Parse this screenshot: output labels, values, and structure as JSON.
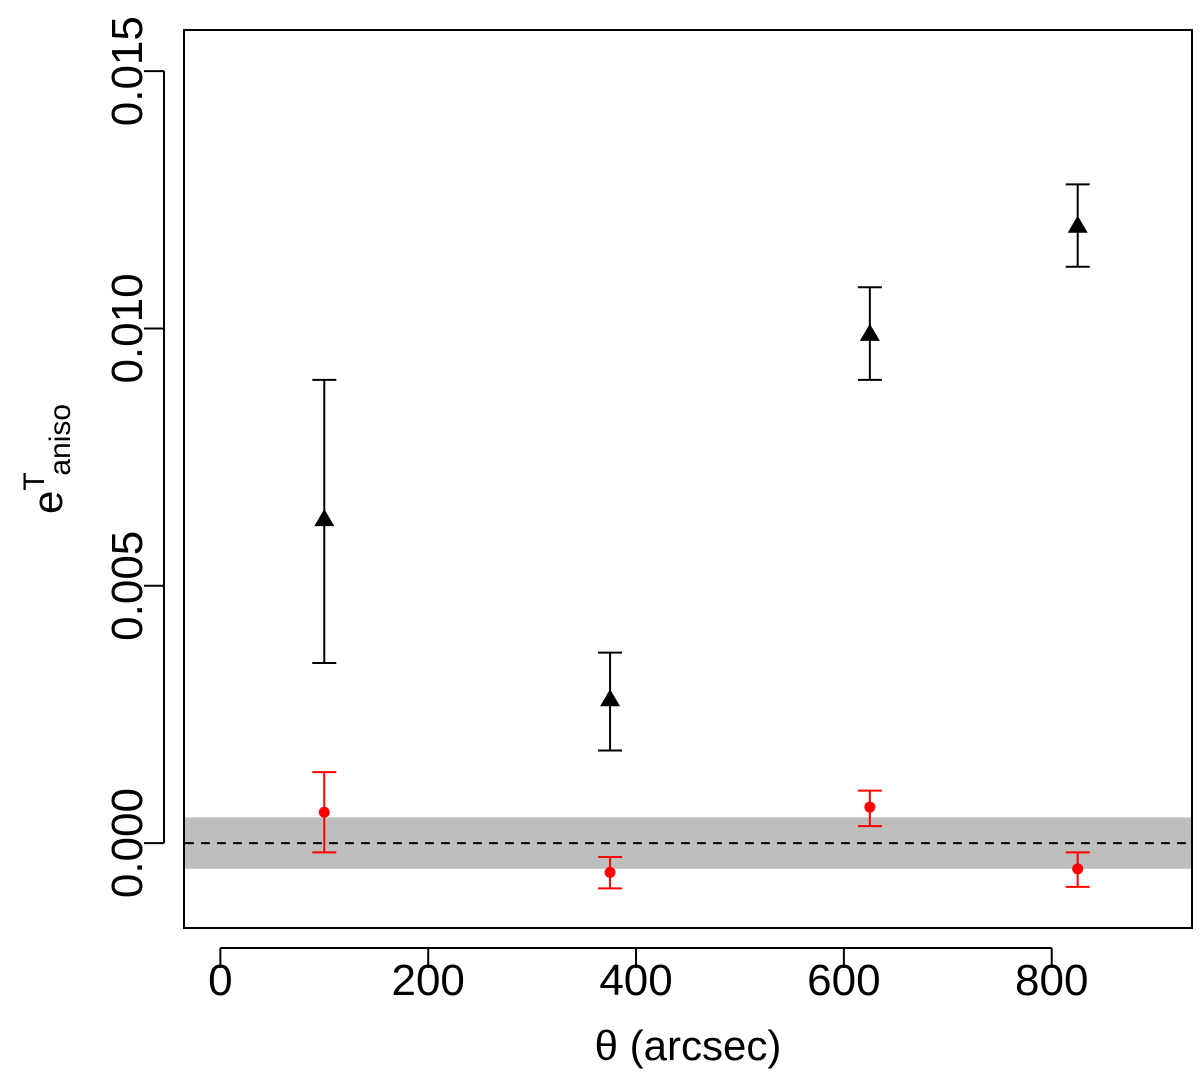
{
  "chart_data": {
    "type": "scatter",
    "title": "",
    "xlabel": "θ  (arcsec)",
    "ylabel": {
      "base": "e",
      "superscript": "T",
      "subscript": "aniso"
    },
    "xlim": [
      -35,
      935
    ],
    "ylim": [
      -0.00165,
      0.0158
    ],
    "x_ticks": [
      0,
      200,
      400,
      600,
      800
    ],
    "x_tick_labels": [
      "0",
      "200",
      "400",
      "600",
      "800"
    ],
    "y_ticks": [
      0.0,
      0.005,
      0.01,
      0.015
    ],
    "y_tick_labels": [
      "0.000",
      "0.005",
      "0.010",
      "0.015"
    ],
    "grid": false,
    "band": {
      "y_low": -0.0005,
      "y_high": 0.0005,
      "color": "#bebebe"
    },
    "reference_line": {
      "y": 0.0,
      "style": "dashed",
      "color": "#000000"
    },
    "series": [
      {
        "marker": "triangle",
        "color": "#000000",
        "points": [
          {
            "x": 100,
            "y": 0.0063,
            "y_low": 0.0035,
            "y_high": 0.009
          },
          {
            "x": 375,
            "y": 0.0028,
            "y_low": 0.0018,
            "y_high": 0.0037
          },
          {
            "x": 625,
            "y": 0.0099,
            "y_low": 0.009,
            "y_high": 0.0108
          },
          {
            "x": 825,
            "y": 0.012,
            "y_low": 0.0112,
            "y_high": 0.0128
          }
        ]
      },
      {
        "marker": "circle",
        "color": "#ff0000",
        "points": [
          {
            "x": 100,
            "y": 0.0006,
            "y_low": -0.00018,
            "y_high": 0.00138
          },
          {
            "x": 375,
            "y": -0.00057,
            "y_low": -0.00088,
            "y_high": -0.00027
          },
          {
            "x": 625,
            "y": 0.0007,
            "y_low": 0.00033,
            "y_high": 0.00102
          },
          {
            "x": 825,
            "y": -0.0005,
            "y_low": -0.00085,
            "y_high": -0.00018
          }
        ]
      }
    ]
  }
}
